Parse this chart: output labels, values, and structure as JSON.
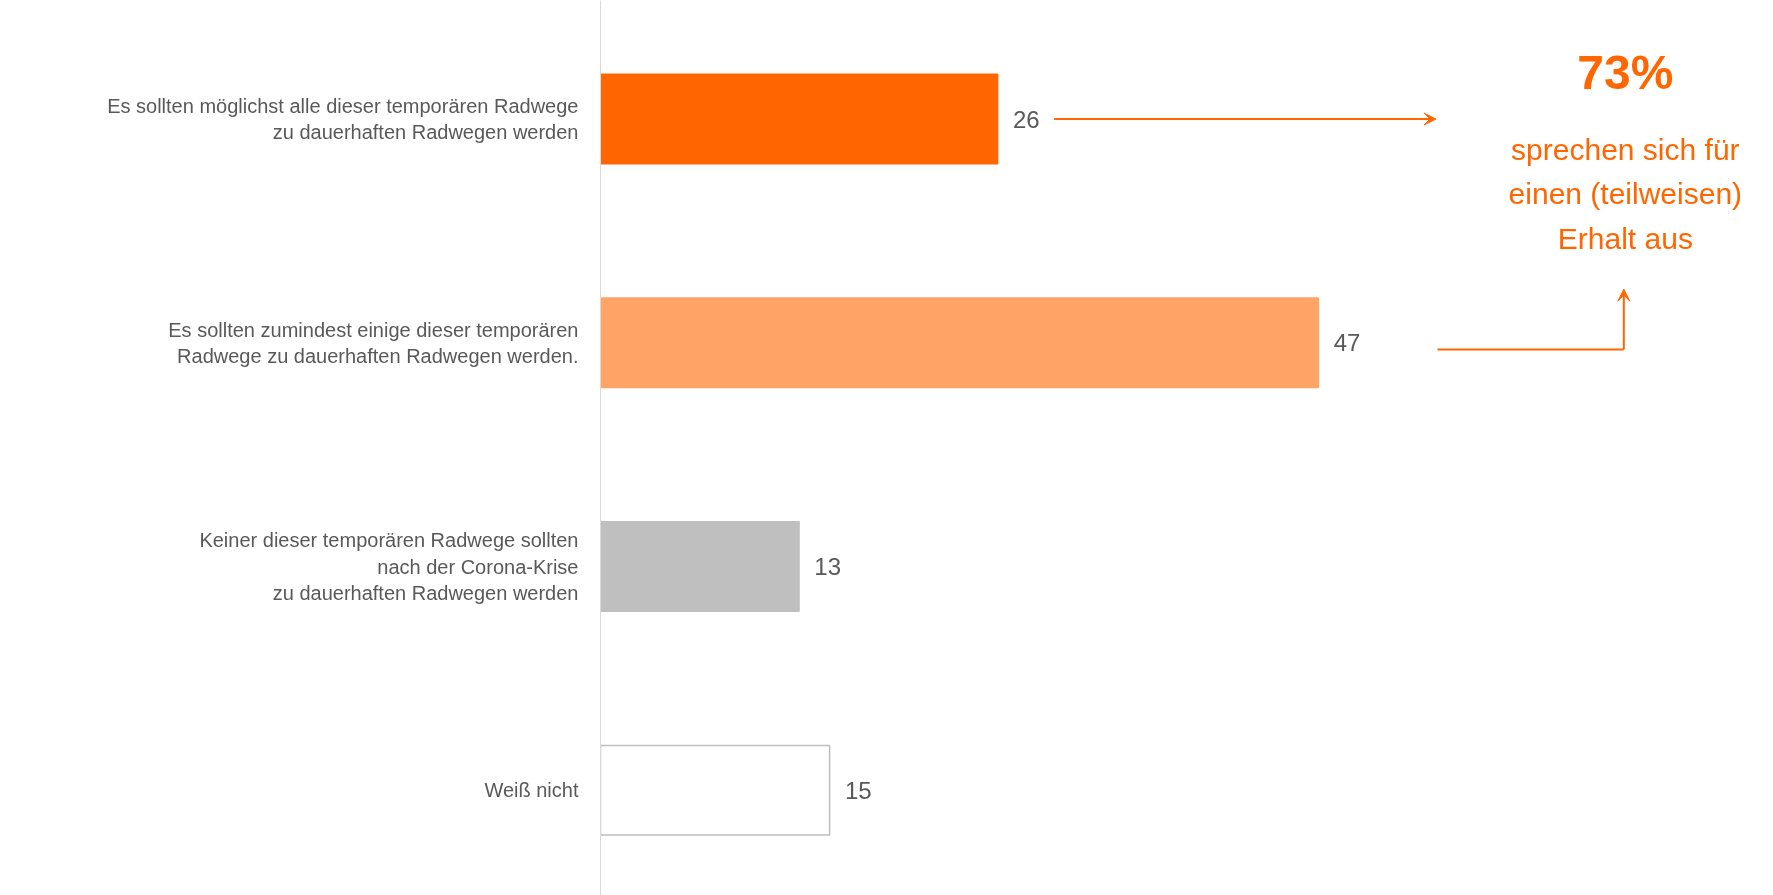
{
  "chart_data": {
    "type": "bar",
    "orientation": "horizontal",
    "categories": [
      "Es sollten möglichst alle dieser temporären Radwege\nzu dauerhaften Radwegen werden",
      "Es sollten zumindest einige dieser temporären\nRadwege zu dauerhaften Radwegen werden.",
      "Keiner dieser temporären Radwege sollten\nnach der Corona-Krise\nzu dauerhaften Radwegen werden",
      "Weiß nicht"
    ],
    "values": [
      26,
      47,
      13,
      15
    ],
    "colors": [
      "#ff6600",
      "#ffa366",
      "#bfbfbf",
      "#ffffff"
    ],
    "data_labels": true,
    "grid": false,
    "annotations": [
      "73%",
      "sprechen sich für\neinen (teilweisen)\nErhalt aus"
    ]
  }
}
